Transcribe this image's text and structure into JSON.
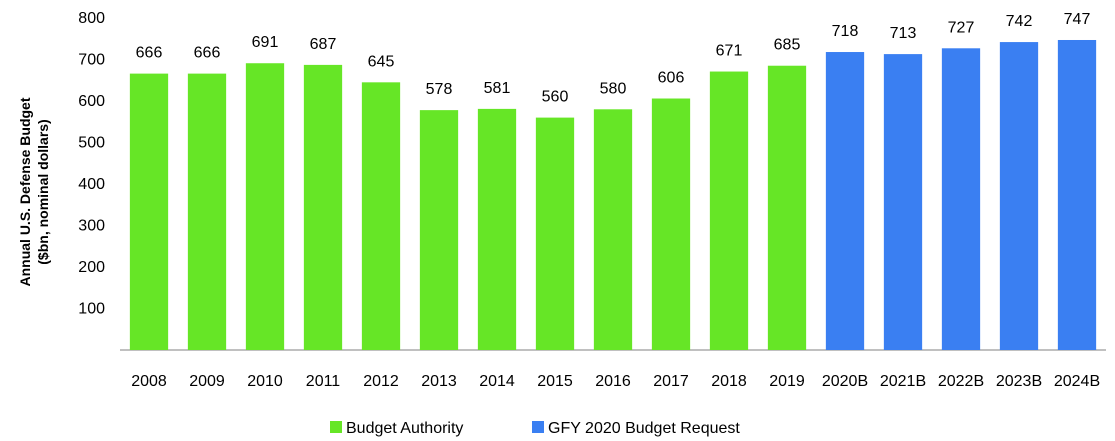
{
  "chart_data": {
    "type": "bar",
    "categories": [
      "2008",
      "2009",
      "2010",
      "2011",
      "2012",
      "2013",
      "2014",
      "2015",
      "2016",
      "2017",
      "2018",
      "2019",
      "2020B",
      "2021B",
      "2022B",
      "2023B",
      "2024B"
    ],
    "series": [
      {
        "name": "Budget Authority",
        "color": "#66e626",
        "values": [
          666,
          666,
          691,
          687,
          645,
          578,
          581,
          560,
          580,
          606,
          671,
          685,
          null,
          null,
          null,
          null,
          null
        ]
      },
      {
        "name": "GFY 2020 Budget Request",
        "color": "#3a7ff2",
        "values": [
          null,
          null,
          null,
          null,
          null,
          null,
          null,
          null,
          null,
          null,
          null,
          null,
          718,
          713,
          727,
          742,
          747
        ]
      }
    ],
    "ylabel": [
      "Annual U.S. Defense Budget",
      "($bn, nominal dollars)"
    ],
    "xlabel": "",
    "ylim": [
      0,
      800
    ],
    "yticks": [
      100,
      200,
      300,
      400,
      500,
      600,
      700,
      800
    ],
    "grid": false,
    "legend_position": "bottom"
  }
}
